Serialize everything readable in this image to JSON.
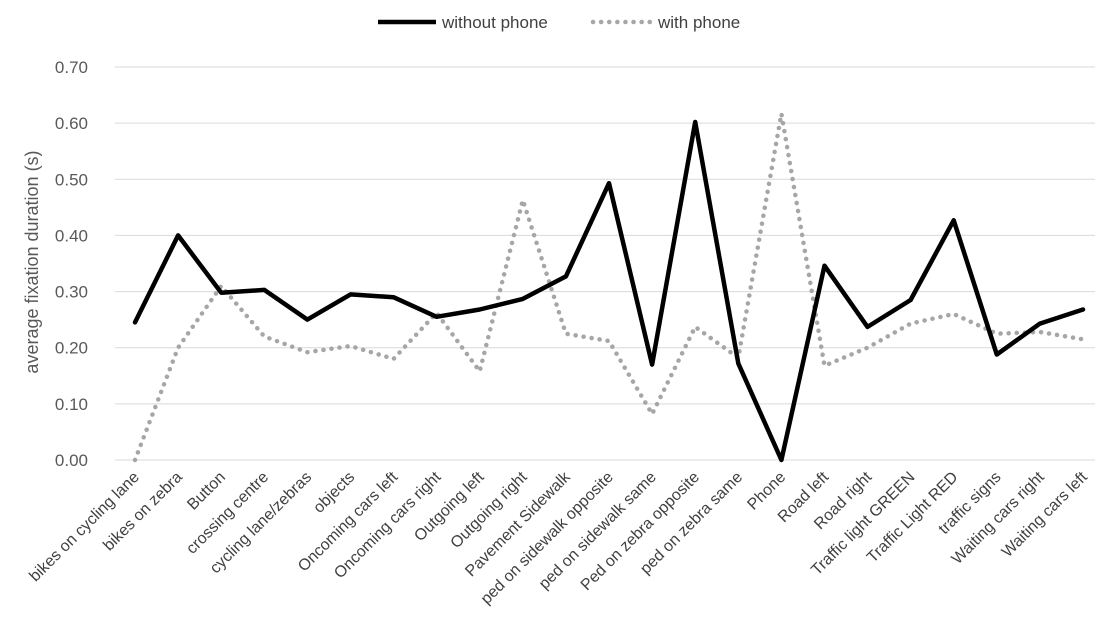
{
  "chart_data": {
    "type": "line",
    "ylabel": "average fixation duration (s)",
    "xlabel": "",
    "ylim": [
      0,
      0.7
    ],
    "yticks": [
      "0.00",
      "0.10",
      "0.20",
      "0.30",
      "0.40",
      "0.50",
      "0.60",
      "0.70"
    ],
    "grid": true,
    "legend_position": "top-center",
    "categories": [
      "bikes on cycling lane",
      "bikes on zebra",
      "Button",
      "crossing centre",
      "cycling lane/zebras",
      "objects",
      "Oncoming cars left",
      "Oncoming cars right",
      "Outgoing left",
      "Outgoing right",
      "Pavement Sidewalk",
      "ped on sidewalk opposite",
      "ped on sidewalk same",
      "Ped on zebra opposite",
      "ped on zebra same",
      "Phone",
      "Road left",
      "Road right",
      "Traffic light GREEN",
      "Traffic Light RED",
      "traffic signs",
      "Waiting cars right",
      "Waiting cars left"
    ],
    "series": [
      {
        "name": "without phone",
        "style": "solid",
        "color": "#000000",
        "values": [
          0.245,
          0.4,
          0.298,
          0.303,
          0.25,
          0.295,
          0.29,
          0.255,
          0.268,
          0.287,
          0.327,
          0.493,
          0.17,
          0.602,
          0.172,
          0.0,
          0.346,
          0.237,
          0.285,
          0.427,
          0.188,
          0.243,
          0.268
        ]
      },
      {
        "name": "with phone",
        "style": "dotted",
        "color": "#a6a6a6",
        "values": [
          0.0,
          0.2,
          0.31,
          0.22,
          0.192,
          0.203,
          0.18,
          0.262,
          0.158,
          0.463,
          0.225,
          0.212,
          0.082,
          0.237,
          0.182,
          0.617,
          0.168,
          0.2,
          0.243,
          0.26,
          0.225,
          0.228,
          0.215
        ]
      }
    ]
  }
}
